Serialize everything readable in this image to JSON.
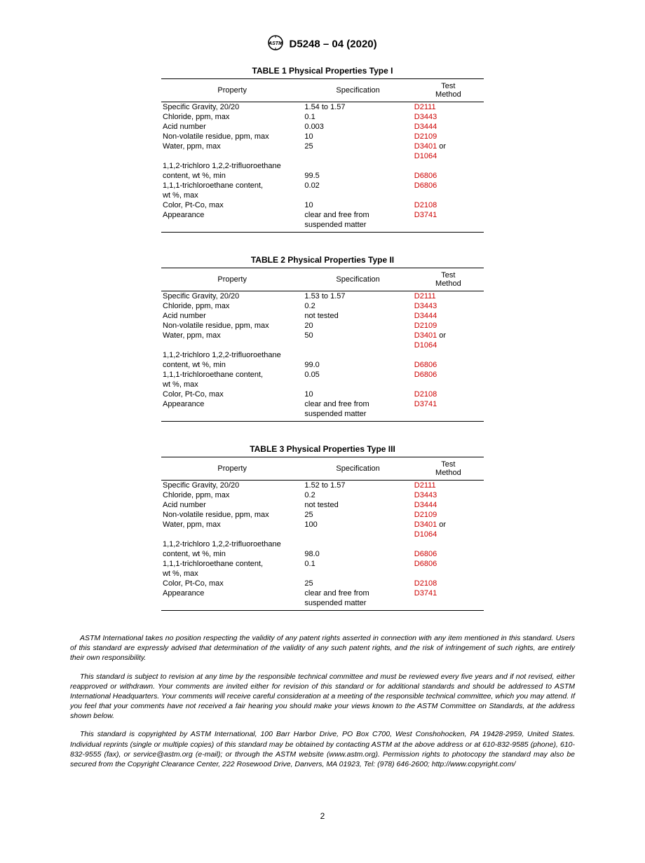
{
  "header": {
    "designation": "D5248 – 04 (2020)"
  },
  "link_color": "#cc0000",
  "tables": [
    {
      "title": "TABLE 1 Physical Properties Type I",
      "columns": [
        "Property",
        "Specification",
        "Test Method"
      ],
      "rows": [
        {
          "prop": "Specific Gravity, 20/20",
          "spec": "1.54 to 1.57",
          "method": "D2111",
          "link": true
        },
        {
          "prop": "Chloride, ppm, max",
          "spec": "0.1",
          "method": "D3443",
          "link": true
        },
        {
          "prop": "Acid number",
          "spec": "0.003",
          "method": "D3444",
          "link": true
        },
        {
          "prop": "Non-volatile residue, ppm, max",
          "spec": "10",
          "method": "D2109",
          "link": true
        },
        {
          "prop": "Water, ppm, max",
          "spec": "25",
          "method": "D3401",
          "method_suffix": " or",
          "link": true
        },
        {
          "prop": "",
          "spec": "",
          "method": "D1064",
          "link": true
        },
        {
          "prop": "1,1,2-trichloro 1,2,2-trifluoroethane",
          "spec": "",
          "method": ""
        },
        {
          "prop": "content, wt %, min",
          "indent": true,
          "spec": "99.5",
          "method": "D6806",
          "link": true
        },
        {
          "prop": "1,1,1-trichloroethane content,",
          "spec": "0.02",
          "method": "D6806",
          "link": true
        },
        {
          "prop": "wt %, max",
          "indent": true,
          "spec": "",
          "method": ""
        },
        {
          "prop": "Color, Pt-Co, max",
          "spec": "10",
          "method": "D2108",
          "link": true
        },
        {
          "prop": "Appearance",
          "spec": "clear and free from",
          "method": "D3741",
          "link": true
        },
        {
          "prop": "",
          "spec": "suspended matter",
          "method": ""
        }
      ]
    },
    {
      "title": "TABLE 2 Physical Properties Type II",
      "columns": [
        "Property",
        "Specification",
        "Test Method"
      ],
      "rows": [
        {
          "prop": "Specific Gravity, 20/20",
          "spec": "1.53 to 1.57",
          "method": "D2111",
          "link": true
        },
        {
          "prop": "Chloride, ppm, max",
          "spec": "0.2",
          "method": "D3443",
          "link": true
        },
        {
          "prop": "Acid number",
          "spec": "not tested",
          "method": "D3444",
          "link": true
        },
        {
          "prop": "Non-volatile residue, ppm, max",
          "spec": "20",
          "method": "D2109",
          "link": true
        },
        {
          "prop": "Water, ppm, max",
          "spec": "50",
          "method": "D3401",
          "method_suffix": " or",
          "link": true
        },
        {
          "prop": "",
          "spec": "",
          "method": "D1064",
          "link": true
        },
        {
          "prop": "1,1,2-trichloro 1,2,2-trifluoroethane",
          "spec": "",
          "method": ""
        },
        {
          "prop": "content, wt %, min",
          "indent": true,
          "spec": "99.0",
          "method": "D6806",
          "link": true
        },
        {
          "prop": "1,1,1-trichloroethane content,",
          "spec": "0.05",
          "method": "D6806",
          "link": true
        },
        {
          "prop": "wt %, max",
          "indent": true,
          "spec": "",
          "method": ""
        },
        {
          "prop": "Color, Pt-Co, max",
          "spec": "10",
          "method": "D2108",
          "link": true
        },
        {
          "prop": "Appearance",
          "spec": "clear and free from",
          "method": "D3741",
          "link": true
        },
        {
          "prop": "",
          "spec": "suspended matter",
          "method": ""
        }
      ]
    },
    {
      "title": "TABLE 3 Physical Properties Type III",
      "columns": [
        "Property",
        "Specification",
        "Test Method"
      ],
      "rows": [
        {
          "prop": "Specific Gravity, 20/20",
          "spec": "1.52 to 1.57",
          "method": "D2111",
          "link": true
        },
        {
          "prop": "Chloride, ppm, max",
          "spec": "0.2",
          "method": "D3443",
          "link": true
        },
        {
          "prop": "Acid number",
          "spec": "not tested",
          "method": "D3444",
          "link": true
        },
        {
          "prop": "Non-volatile residue, ppm, max",
          "spec": "25",
          "method": "D2109",
          "link": true
        },
        {
          "prop": "Water, ppm, max",
          "spec": "100",
          "method": "D3401",
          "method_suffix": " or",
          "link": true
        },
        {
          "prop": "",
          "spec": "",
          "method": "D1064",
          "link": true
        },
        {
          "prop": "1,1,2-trichloro 1,2,2-trifluoroethane",
          "spec": "",
          "method": ""
        },
        {
          "prop": "content, wt %, min",
          "indent": true,
          "spec": "98.0",
          "method": "D6806",
          "link": true
        },
        {
          "prop": "1,1,1-trichloroethane content,",
          "spec": "0.1",
          "method": "D6806",
          "link": true
        },
        {
          "prop": "wt %, max",
          "indent": true,
          "spec": "",
          "method": ""
        },
        {
          "prop": "Color, Pt-Co, max",
          "spec": "25",
          "method": "D2108",
          "link": true
        },
        {
          "prop": "Appearance",
          "spec": "clear and free from",
          "method": "D3741",
          "link": true
        },
        {
          "prop": "",
          "spec": "suspended matter",
          "method": ""
        }
      ]
    }
  ],
  "footer": {
    "para1": "ASTM International takes no position respecting the validity of any patent rights asserted in connection with any item mentioned in this standard. Users of this standard are expressly advised that determination of the validity of any such patent rights, and the risk of infringement of such rights, are entirely their own responsibility.",
    "para2": "This standard is subject to revision at any time by the responsible technical committee and must be reviewed every five years and if not revised, either reapproved or withdrawn. Your comments are invited either for revision of this standard or for additional standards and should be addressed to ASTM International Headquarters. Your comments will receive careful consideration at a meeting of the responsible technical committee, which you may attend. If you feel that your comments have not received a fair hearing you should make your views known to the ASTM Committee on Standards, at the address shown below.",
    "para3": "This standard is copyrighted by ASTM International, 100 Barr Harbor Drive, PO Box C700, West Conshohocken, PA 19428-2959, United States. Individual reprints (single or multiple copies) of this standard may be obtained by contacting ASTM at the above address or at 610-832-9585 (phone), 610-832-9555 (fax), or service@astm.org (e-mail); or through the ASTM website (www.astm.org). Permission rights to photocopy the standard may also be secured from the Copyright Clearance Center, 222 Rosewood Drive, Danvers, MA 01923, Tel: (978) 646-2600; http://www.copyright.com/"
  },
  "page_number": "2"
}
